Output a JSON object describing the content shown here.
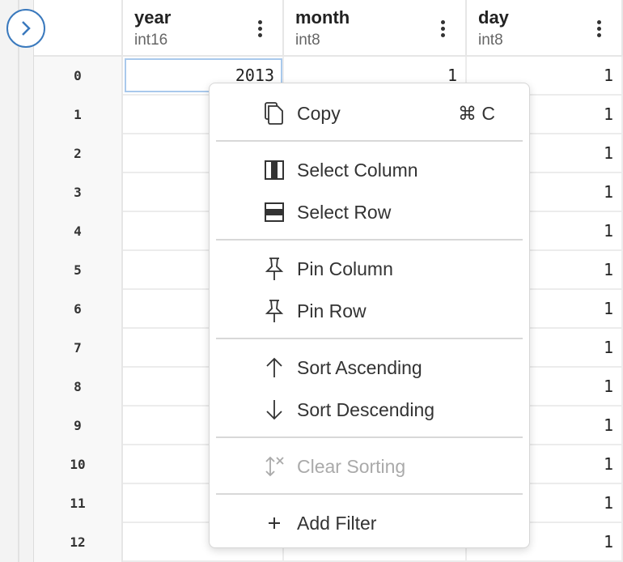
{
  "columns": [
    {
      "name": "year",
      "type": "int16"
    },
    {
      "name": "month",
      "type": "int8"
    },
    {
      "name": "day",
      "type": "int8"
    }
  ],
  "rows": [
    {
      "index": "0",
      "year": "2013",
      "month": "1",
      "day": "1"
    },
    {
      "index": "1",
      "year": "",
      "month": "",
      "day": "1"
    },
    {
      "index": "2",
      "year": "",
      "month": "",
      "day": "1"
    },
    {
      "index": "3",
      "year": "",
      "month": "",
      "day": "1"
    },
    {
      "index": "4",
      "year": "",
      "month": "",
      "day": "1"
    },
    {
      "index": "5",
      "year": "",
      "month": "",
      "day": "1"
    },
    {
      "index": "6",
      "year": "",
      "month": "",
      "day": "1"
    },
    {
      "index": "7",
      "year": "",
      "month": "",
      "day": "1"
    },
    {
      "index": "8",
      "year": "",
      "month": "",
      "day": "1"
    },
    {
      "index": "9",
      "year": "",
      "month": "",
      "day": "1"
    },
    {
      "index": "10",
      "year": "",
      "month": "",
      "day": "1"
    },
    {
      "index": "11",
      "year": "",
      "month": "",
      "day": "1"
    },
    {
      "index": "12",
      "year": "",
      "month": "",
      "day": "1"
    }
  ],
  "menu": {
    "copy": "Copy",
    "copy_shortcut": "⌘ C",
    "select_column": "Select Column",
    "select_row": "Select Row",
    "pin_column": "Pin Column",
    "pin_row": "Pin Row",
    "sort_asc": "Sort Ascending",
    "sort_desc": "Sort Descending",
    "clear_sorting": "Clear Sorting",
    "add_filter": "Add Filter"
  },
  "colors": {
    "accent": "#3a79bd",
    "selection": "#a9c9ec"
  }
}
